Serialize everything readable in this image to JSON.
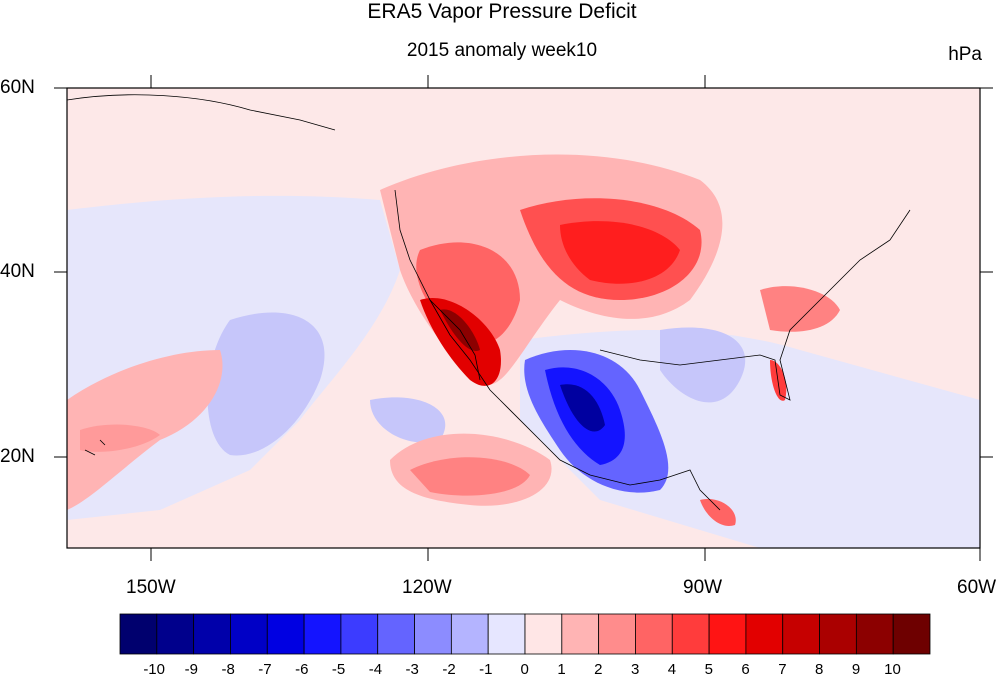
{
  "title": "ERA5 Vapor Pressure Deficit",
  "subtitle": "2015 anomaly week10",
  "units": "hPa",
  "lat_labels": [
    "60N",
    "40N",
    "20N"
  ],
  "lon_labels": [
    "150W",
    "120W",
    "90W",
    "60W"
  ],
  "colorbar": {
    "labels": [
      "-10",
      "-9",
      "-8",
      "-7",
      "-6",
      "-5",
      "-4",
      "-3",
      "-2",
      "-1",
      "0",
      "1",
      "2",
      "3",
      "4",
      "5",
      "6",
      "7",
      "8",
      "9",
      "10"
    ],
    "colors": [
      "#00006e",
      "#00008c",
      "#0000aa",
      "#0000c6",
      "#0000e2",
      "#1414ff",
      "#3c3cff",
      "#6464ff",
      "#8c8cff",
      "#b4b4ff",
      "#e6e6ff",
      "#ffe6e6",
      "#ffb4b4",
      "#ff8c8c",
      "#ff6464",
      "#ff3c3c",
      "#ff1414",
      "#e20000",
      "#c60000",
      "#aa0000",
      "#8c0000",
      "#6e0000"
    ]
  },
  "colors": {
    "ocean_background": "#e8e8fb",
    "land_background": "#fdeaea"
  }
}
